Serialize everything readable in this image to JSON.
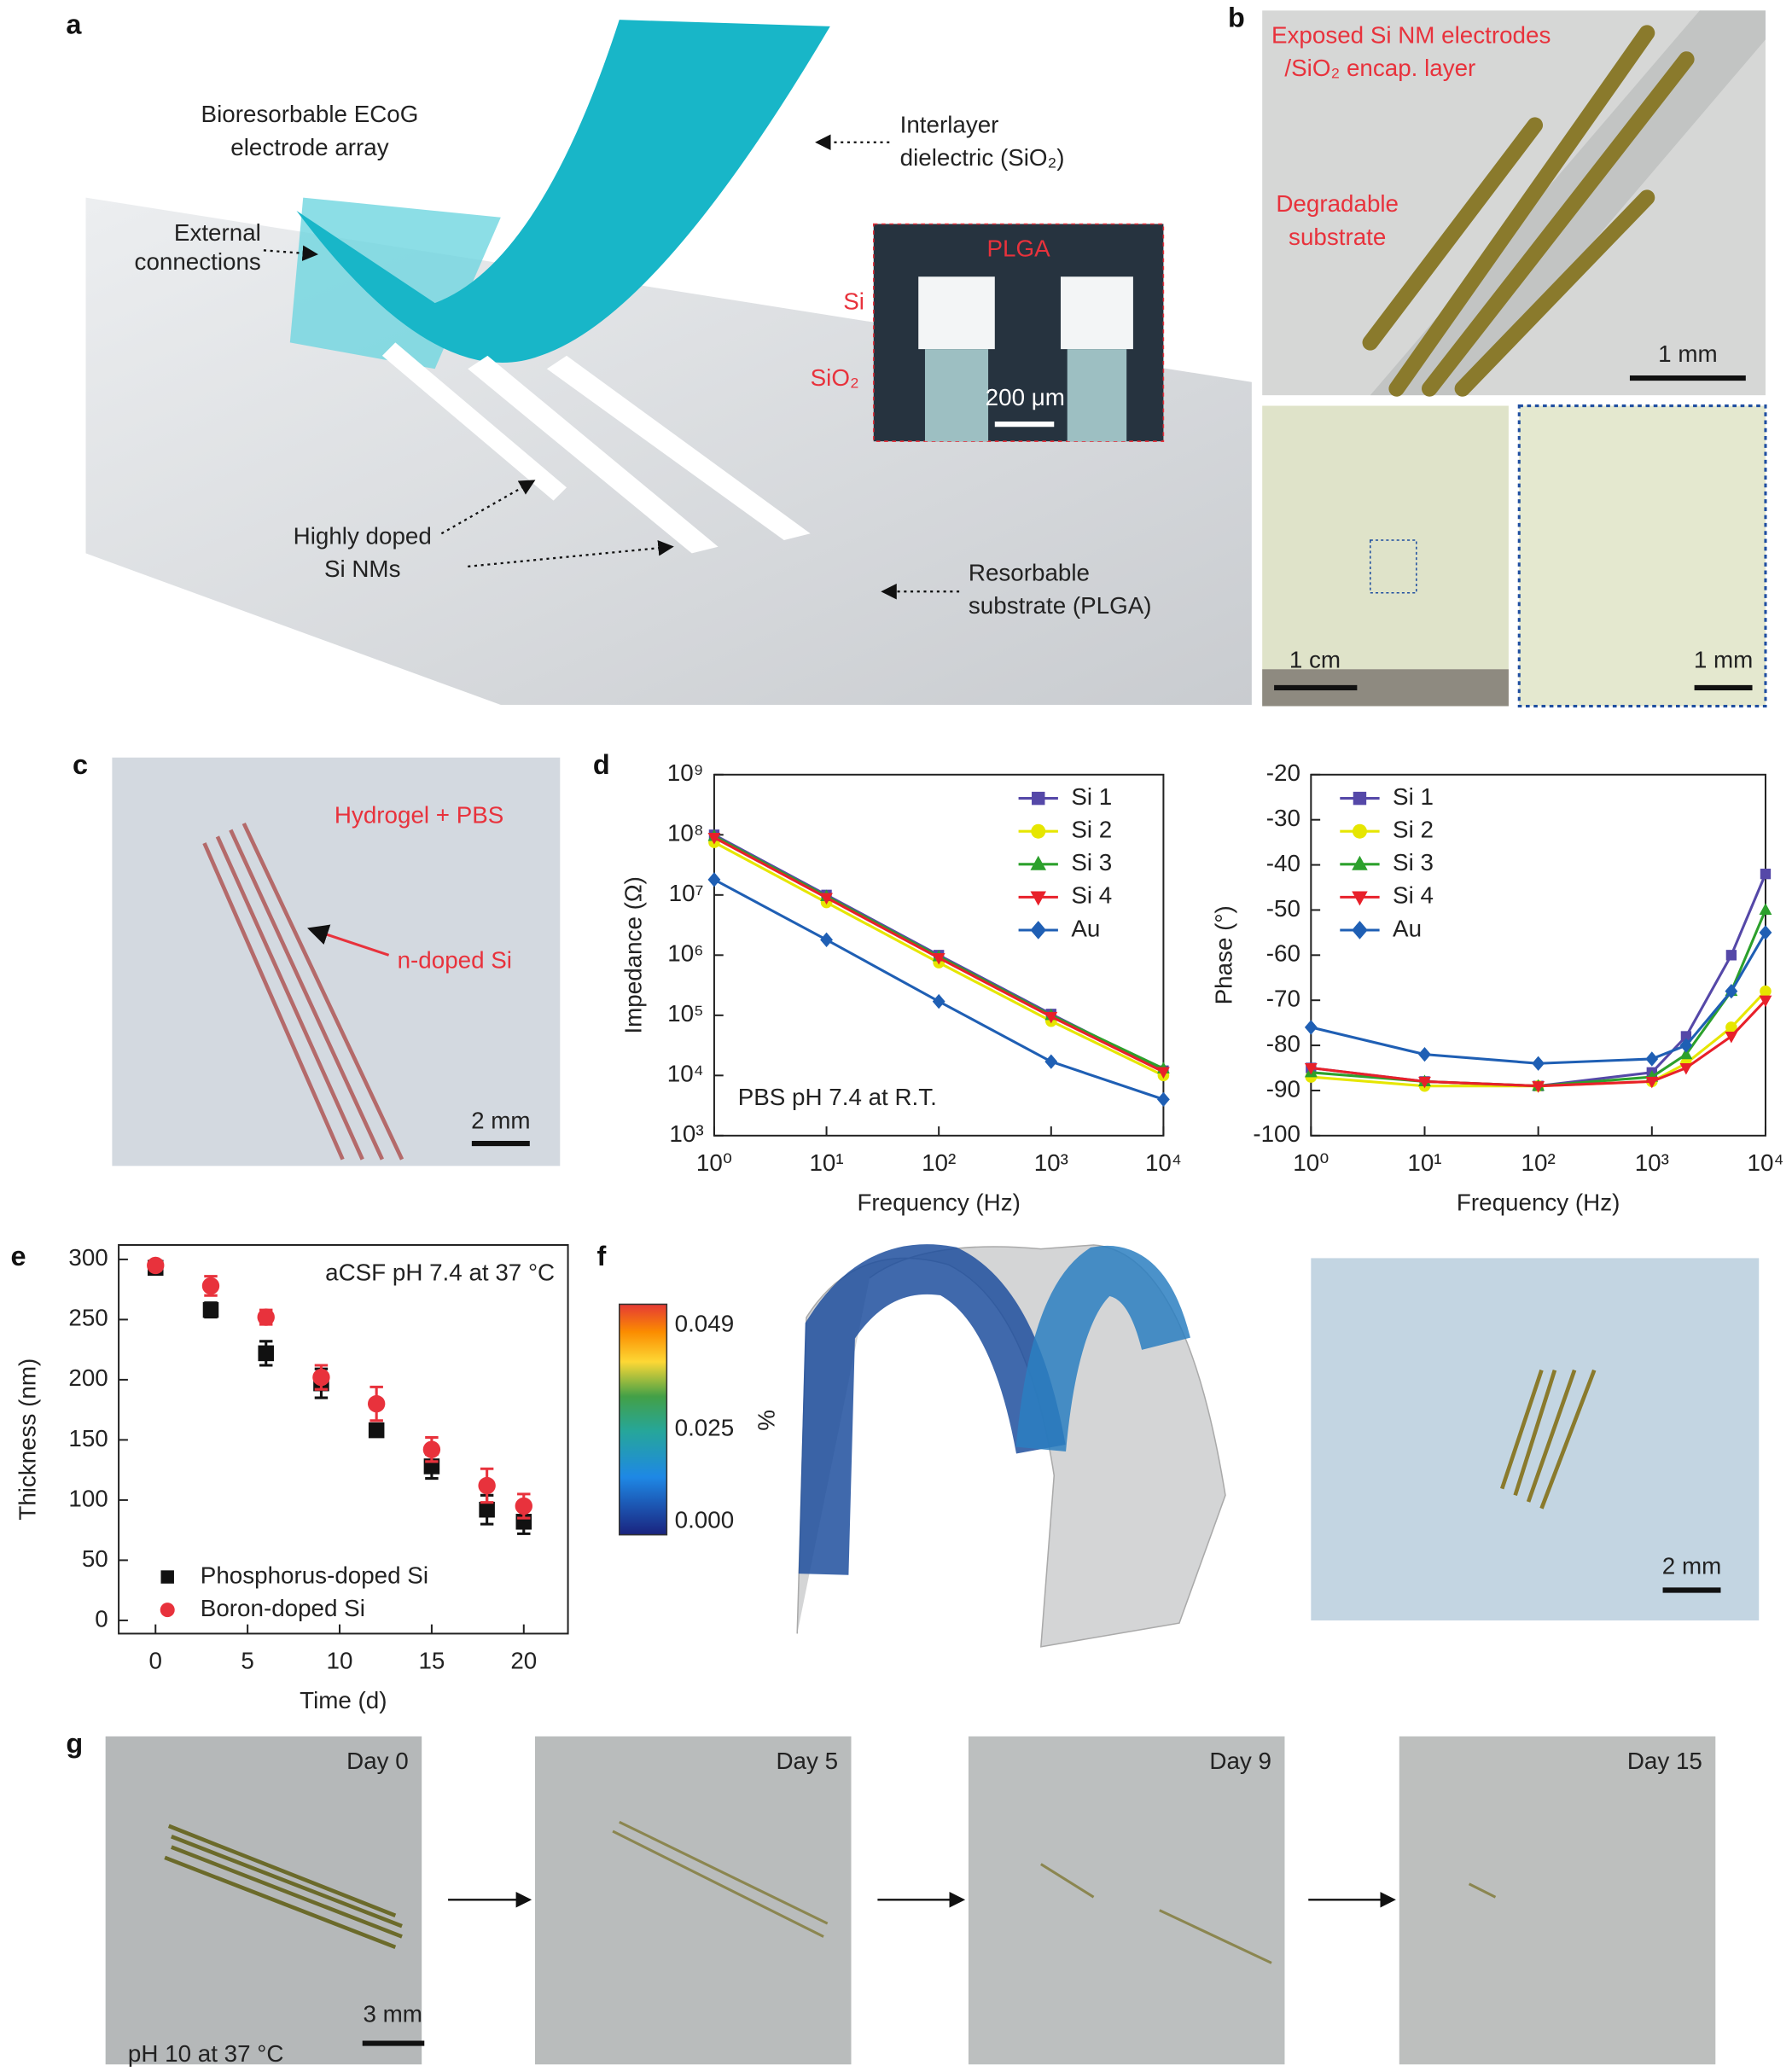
{
  "figure": {
    "panel_labels": [
      "a",
      "b",
      "c",
      "d",
      "e",
      "f",
      "g"
    ],
    "a": {
      "array_label": [
        "Bioresorbable ECoG",
        "electrode array"
      ],
      "external": [
        "External",
        "connections"
      ],
      "interlayer": [
        "Interlayer",
        "dielectric (SiO₂)"
      ],
      "nms": [
        "Highly doped",
        "Si NMs"
      ],
      "substrate": [
        "Resorbable",
        "substrate (PLGA)"
      ],
      "inset": {
        "plga": "PLGA",
        "si": "Si",
        "sio2": "SiO₂",
        "scale": "200 μm"
      }
    },
    "b": {
      "electrodes": [
        "Exposed Si NM electrodes",
        "/SiO₂ encap. layer"
      ],
      "substrate": [
        "Degradable",
        "substrate"
      ],
      "scale_top": "1 mm",
      "scale_left": "1 cm",
      "scale_right": "1 mm"
    },
    "c": {
      "hydrogel": "Hydrogel + PBS",
      "ndoped": "n-doped Si",
      "scale": "2 mm"
    },
    "f": {
      "colorbar_labels": [
        "0.049",
        "0.025",
        "0.000"
      ],
      "unit": "%",
      "scale": "2 mm"
    },
    "g": {
      "days": [
        "Day 0",
        "Day 5",
        "Day 9",
        "Day 15"
      ],
      "condition": "pH 10 at 37 °C",
      "scale": "3 mm"
    }
  },
  "chart_data": [
    {
      "type": "line",
      "xlabel": "Frequency (Hz)",
      "ylabel": "Impedance (Ω)",
      "annotation": "PBS pH 7.4 at R.T.",
      "xscale": "log",
      "yscale": "log",
      "legend": "upper right",
      "x": [
        1,
        10,
        100,
        1000,
        10000
      ],
      "xlim": [
        1,
        10000
      ],
      "ylim": [
        1000,
        1000000000
      ],
      "xticks": [
        {
          "value": 1,
          "label": "10⁰"
        },
        {
          "value": 10,
          "label": "10¹"
        },
        {
          "value": 100,
          "label": "10²"
        },
        {
          "value": 1000,
          "label": "10³"
        },
        {
          "value": 10000,
          "label": "10⁴"
        }
      ],
      "yticks": [
        {
          "value": 1000,
          "label": "10³"
        },
        {
          "value": 10000,
          "label": "10⁴"
        },
        {
          "value": 100000,
          "label": "10⁵"
        },
        {
          "value": 1000000,
          "label": "10⁶"
        },
        {
          "value": 10000000,
          "label": "10⁷"
        },
        {
          "value": 100000000,
          "label": "10⁸"
        },
        {
          "value": 1000000000,
          "label": "10⁹"
        }
      ],
      "series": [
        {
          "name": "Si 1",
          "color": "#5548a8",
          "marker": "square",
          "values": [
            100000000,
            10000000,
            1000000,
            105000,
            12000
          ]
        },
        {
          "name": "Si 2",
          "color": "#e6e600",
          "marker": "circle",
          "values": [
            75000000,
            7500000,
            750000,
            80000,
            10000
          ]
        },
        {
          "name": "Si 3",
          "color": "#2ca02c",
          "marker": "triangle-up",
          "values": [
            95000000,
            9500000,
            950000,
            100000,
            13000
          ]
        },
        {
          "name": "Si 4",
          "color": "#e8202a",
          "marker": "triangle-down",
          "values": [
            90000000,
            9000000,
            900000,
            95000,
            11500
          ]
        },
        {
          "name": "Au",
          "color": "#1f5fb4",
          "marker": "diamond",
          "values": [
            18000000,
            1800000,
            170000,
            17000,
            4000
          ]
        }
      ]
    },
    {
      "type": "line",
      "xlabel": "Frequency (Hz)",
      "ylabel": "Phase (°)",
      "xscale": "log",
      "yscale": "linear",
      "legend": "upper left",
      "x": [
        1,
        10,
        100,
        1000,
        2000,
        5000,
        10000
      ],
      "xlim": [
        1,
        10000
      ],
      "ylim": [
        -100,
        -20
      ],
      "xticks": [
        {
          "value": 1,
          "label": "10⁰"
        },
        {
          "value": 10,
          "label": "10¹"
        },
        {
          "value": 100,
          "label": "10²"
        },
        {
          "value": 1000,
          "label": "10³"
        },
        {
          "value": 10000,
          "label": "10⁴"
        }
      ],
      "yticks": [
        -100,
        -90,
        -80,
        -70,
        -60,
        -50,
        -40,
        -30,
        -20
      ],
      "series": [
        {
          "name": "Si 1",
          "color": "#5548a8",
          "marker": "square",
          "values": [
            -85,
            -88,
            -89,
            -86,
            -78,
            -60,
            -42
          ]
        },
        {
          "name": "Si 2",
          "color": "#e6e600",
          "marker": "circle",
          "values": [
            -87,
            -89,
            -89,
            -88,
            -84,
            -76,
            -68
          ]
        },
        {
          "name": "Si 3",
          "color": "#2ca02c",
          "marker": "triangle-up",
          "values": [
            -86,
            -88,
            -89,
            -87,
            -82,
            -68,
            -50
          ]
        },
        {
          "name": "Si 4",
          "color": "#e8202a",
          "marker": "triangle-down",
          "values": [
            -85,
            -88,
            -89,
            -88,
            -85,
            -78,
            -70
          ]
        },
        {
          "name": "Au",
          "color": "#1f5fb4",
          "marker": "diamond",
          "values": [
            -76,
            -82,
            -84,
            -83,
            -80,
            -68,
            -55
          ]
        }
      ]
    },
    {
      "type": "scatter",
      "xlabel": "Time (d)",
      "ylabel": "Thickness (nm)",
      "annotation": "aCSF pH 7.4 at 37 °C",
      "xscale": "linear",
      "yscale": "linear",
      "legend": "lower left",
      "x": [
        0,
        3,
        6,
        9,
        12,
        15,
        18,
        20
      ],
      "xlim": [
        -2,
        22.4
      ],
      "ylim": [
        -11,
        312
      ],
      "xticks": [
        0,
        5,
        10,
        15,
        20
      ],
      "yticks": [
        0,
        50,
        100,
        150,
        200,
        250,
        300
      ],
      "series": [
        {
          "name": "Phosphorus-doped Si",
          "color": "#111111",
          "marker": "square",
          "values": [
            293,
            258,
            222,
            197,
            158,
            128,
            92,
            82
          ],
          "errors": [
            5,
            6,
            10,
            12,
            5,
            10,
            12,
            10
          ]
        },
        {
          "name": "Boron-doped Si",
          "color": "#e8323c",
          "marker": "circle",
          "values": [
            295,
            278,
            252,
            202,
            180,
            142,
            112,
            95
          ],
          "errors": [
            4,
            8,
            6,
            10,
            14,
            10,
            14,
            10
          ]
        }
      ]
    }
  ]
}
